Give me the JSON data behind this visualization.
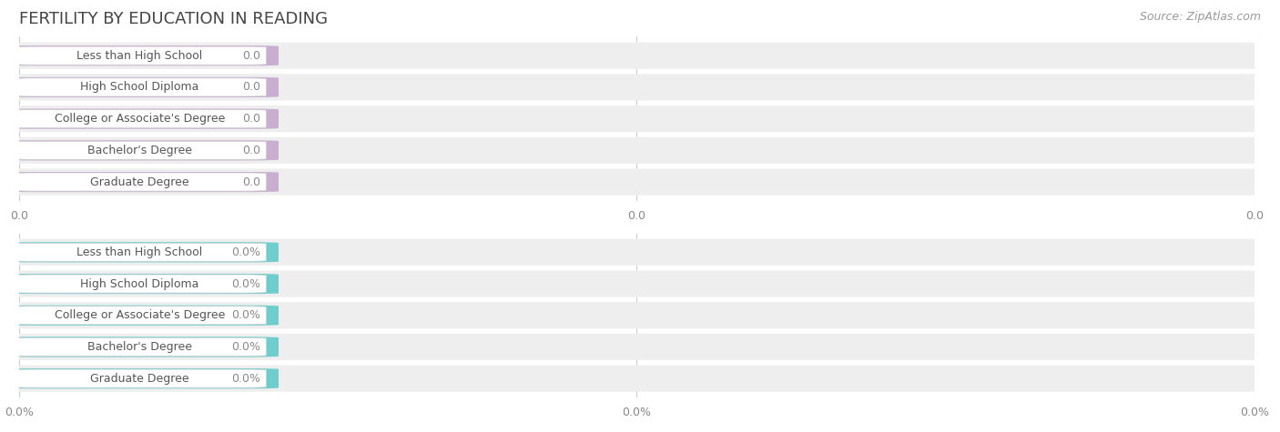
{
  "title": "FERTILITY BY EDUCATION IN READING",
  "source": "Source: ZipAtlas.com",
  "categories": [
    "Less than High School",
    "High School Diploma",
    "College or Associate's Degree",
    "Bachelor's Degree",
    "Graduate Degree"
  ],
  "values_top": [
    0.0,
    0.0,
    0.0,
    0.0,
    0.0
  ],
  "values_bottom": [
    0.0,
    0.0,
    0.0,
    0.0,
    0.0
  ],
  "bar_color_top": "#c9aed1",
  "bar_color_bottom": "#6ecece",
  "bg_color": "#ffffff",
  "row_bg_color": "#eeeeee",
  "title_color": "#444444",
  "source_color": "#999999",
  "label_text_color": "#555555",
  "value_label_color": "#888888",
  "white_pill_color": "#ffffff",
  "white_pill_edge_color": "#cccccc",
  "grid_color": "#cccccc",
  "title_fontsize": 13,
  "source_fontsize": 9,
  "cat_fontsize": 9,
  "val_fontsize": 9,
  "tick_fontsize": 9
}
